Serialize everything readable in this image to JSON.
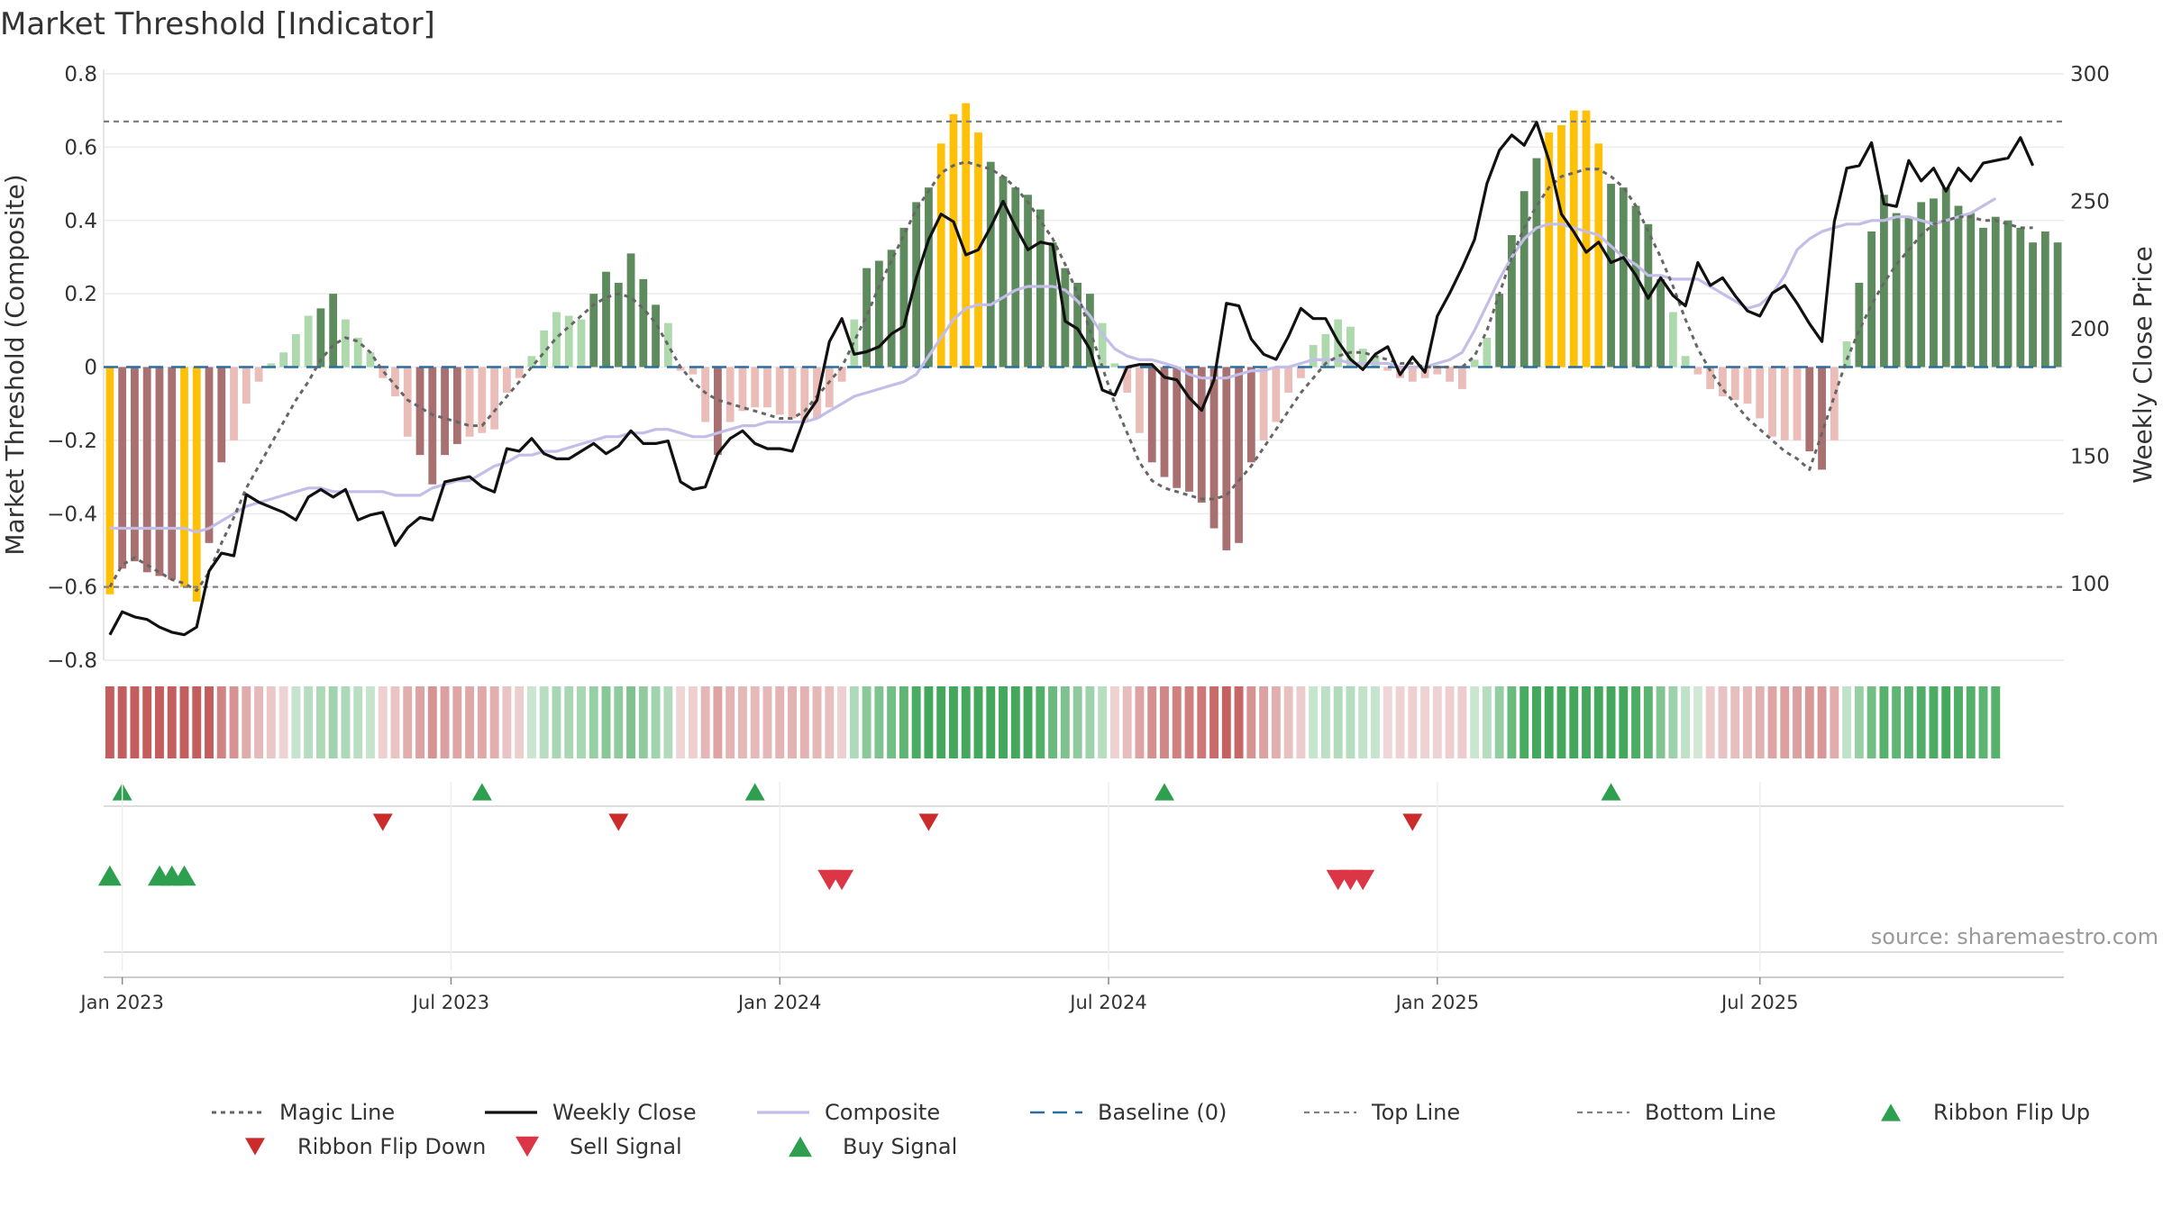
{
  "chart_data": {
    "type": "bar",
    "title": "Market Threshold [Indicator]",
    "ylabel": "Market Threshold (Composite)",
    "ylabel_right": "Weekly Close Price",
    "ylim": [
      -0.8,
      0.8
    ],
    "ylim_right": [
      70,
      300
    ],
    "yticks": [
      "0.8",
      "0.6",
      "0.4",
      "0.2",
      "0",
      "−0.2",
      "−0.4",
      "−0.6",
      "−0.8"
    ],
    "yticks_right": [
      "300",
      "250",
      "200",
      "150",
      "100"
    ],
    "xticks": [
      "Jan 2023",
      "Jul 2023",
      "Jan 2024",
      "Jul 2024",
      "Jan 2025",
      "Jul 2025"
    ],
    "source": "source: sharemaestro.com",
    "top_line": 0.67,
    "bottom_line": -0.6,
    "bar_values": [
      -0.62,
      -0.55,
      -0.53,
      -0.56,
      -0.57,
      -0.58,
      -0.6,
      -0.64,
      -0.48,
      -0.26,
      -0.2,
      -0.1,
      -0.04,
      0.01,
      0.04,
      0.09,
      0.14,
      0.16,
      0.2,
      0.13,
      0.08,
      0.04,
      -0.03,
      -0.08,
      -0.19,
      -0.24,
      -0.32,
      -0.24,
      -0.21,
      -0.19,
      -0.18,
      -0.17,
      -0.07,
      -0.03,
      0.03,
      0.1,
      0.15,
      0.14,
      0.13,
      0.2,
      0.26,
      0.23,
      0.31,
      0.24,
      0.17,
      0.12,
      -0.01,
      -0.02,
      -0.15,
      -0.24,
      -0.15,
      -0.12,
      -0.11,
      -0.11,
      -0.13,
      -0.14,
      -0.15,
      -0.14,
      -0.11,
      -0.04,
      0.13,
      0.27,
      0.29,
      0.32,
      0.38,
      0.45,
      0.49,
      0.61,
      0.69,
      0.72,
      0.64,
      0.56,
      0.52,
      0.49,
      0.47,
      0.43,
      0.34,
      0.27,
      0.23,
      0.2,
      0.12,
      0.01,
      -0.07,
      -0.18,
      -0.26,
      -0.3,
      -0.33,
      -0.34,
      -0.37,
      -0.44,
      -0.5,
      -0.48,
      -0.26,
      -0.2,
      -0.15,
      -0.07,
      -0.03,
      0.06,
      0.09,
      0.13,
      0.11,
      0.05,
      0.03,
      -0.01,
      -0.03,
      -0.04,
      -0.03,
      -0.02,
      -0.04,
      -0.06,
      0.02,
      0.08,
      0.2,
      0.36,
      0.48,
      0.57,
      0.64,
      0.66,
      0.7,
      0.7,
      0.61,
      0.5,
      0.49,
      0.44,
      0.39,
      0.24,
      0.15,
      0.03,
      -0.02,
      -0.06,
      -0.08,
      -0.09,
      -0.1,
      -0.14,
      -0.19,
      -0.2,
      -0.2,
      -0.23,
      -0.28,
      -0.2,
      0.07,
      0.23,
      0.37,
      0.47,
      0.42,
      0.41,
      0.45,
      0.46,
      0.49,
      0.44,
      0.42,
      0.38,
      0.41,
      0.4,
      0.38,
      0.34,
      0.37,
      0.34
    ],
    "series": [
      {
        "name": "Magic Line",
        "values": [
          -0.6,
          -0.54,
          -0.52,
          -0.54,
          -0.56,
          -0.58,
          -0.59,
          -0.61,
          -0.56,
          -0.48,
          -0.41,
          -0.33,
          -0.27,
          -0.21,
          -0.15,
          -0.09,
          -0.04,
          0.02,
          0.06,
          0.08,
          0.07,
          0.04,
          -0.01,
          -0.05,
          -0.09,
          -0.11,
          -0.13,
          -0.14,
          -0.15,
          -0.16,
          -0.16,
          -0.12,
          -0.08,
          -0.04,
          0.0,
          0.04,
          0.08,
          0.11,
          0.14,
          0.17,
          0.19,
          0.2,
          0.19,
          0.16,
          0.12,
          0.06,
          0.0,
          -0.04,
          -0.07,
          -0.09,
          -0.1,
          -0.11,
          -0.12,
          -0.13,
          -0.14,
          -0.14,
          -0.12,
          -0.08,
          -0.04,
          0.0,
          0.07,
          0.14,
          0.22,
          0.29,
          0.36,
          0.43,
          0.48,
          0.53,
          0.55,
          0.56,
          0.55,
          0.54,
          0.52,
          0.49,
          0.45,
          0.4,
          0.35,
          0.28,
          0.2,
          0.1,
          0.0,
          -0.1,
          -0.18,
          -0.26,
          -0.31,
          -0.33,
          -0.34,
          -0.35,
          -0.36,
          -0.36,
          -0.35,
          -0.31,
          -0.27,
          -0.22,
          -0.17,
          -0.12,
          -0.07,
          -0.03,
          0.01,
          0.03,
          0.04,
          0.04,
          0.03,
          0.02,
          0.01,
          0.01,
          0.0,
          0.0,
          0.0,
          0.0,
          0.03,
          0.1,
          0.2,
          0.3,
          0.38,
          0.44,
          0.49,
          0.52,
          0.53,
          0.54,
          0.54,
          0.52,
          0.49,
          0.44,
          0.37,
          0.3,
          0.22,
          0.13,
          0.05,
          -0.01,
          -0.06,
          -0.1,
          -0.14,
          -0.17,
          -0.2,
          -0.23,
          -0.25,
          -0.28,
          -0.18,
          -0.08,
          0.02,
          0.1,
          0.17,
          0.23,
          0.28,
          0.32,
          0.36,
          0.39,
          0.4,
          0.41,
          0.41,
          0.4,
          0.4,
          0.39,
          0.38,
          0.38
        ]
      },
      {
        "name": "Weekly Close",
        "values": [
          80,
          89,
          87,
          86,
          83,
          81,
          80,
          83,
          105,
          112,
          111,
          135,
          132,
          130,
          128,
          125,
          134,
          137,
          134,
          137,
          125,
          127,
          128,
          115,
          122,
          126,
          125,
          140,
          141,
          142,
          138,
          136,
          153,
          152,
          157,
          151,
          149,
          149,
          152,
          155,
          151,
          154,
          160,
          155,
          155,
          156,
          140,
          137,
          138,
          151,
          157,
          160,
          155,
          153,
          153,
          152,
          165,
          172,
          195,
          204,
          190,
          191,
          193,
          198,
          201,
          220,
          235,
          245,
          242,
          229,
          231,
          240,
          250,
          240,
          231,
          234,
          233,
          203,
          200,
          192,
          176,
          174,
          185,
          186,
          186,
          181,
          180,
          173,
          168,
          180,
          210,
          209,
          196,
          190,
          188,
          197,
          208,
          204,
          204,
          195,
          188,
          184,
          190,
          193,
          182,
          189,
          183,
          205,
          214,
          224,
          235,
          257,
          270,
          276,
          272,
          281,
          266,
          245,
          238,
          230,
          234,
          226,
          228,
          221,
          212,
          220,
          213,
          209,
          226,
          217,
          220,
          213,
          207,
          205,
          214,
          217,
          210,
          202,
          195,
          242,
          263,
          264,
          273,
          249,
          248,
          266,
          258,
          263,
          254,
          263,
          258,
          265,
          266,
          267,
          275,
          264
        ]
      },
      {
        "name": "Composite",
        "values": [
          -0.44,
          -0.44,
          -0.44,
          -0.44,
          -0.44,
          -0.44,
          -0.44,
          -0.45,
          -0.44,
          -0.42,
          -0.4,
          -0.38,
          -0.37,
          -0.36,
          -0.35,
          -0.34,
          -0.33,
          -0.33,
          -0.34,
          -0.34,
          -0.34,
          -0.34,
          -0.34,
          -0.35,
          -0.35,
          -0.35,
          -0.33,
          -0.32,
          -0.31,
          -0.31,
          -0.29,
          -0.27,
          -0.26,
          -0.24,
          -0.24,
          -0.23,
          -0.23,
          -0.22,
          -0.21,
          -0.2,
          -0.19,
          -0.19,
          -0.18,
          -0.18,
          -0.17,
          -0.17,
          -0.18,
          -0.19,
          -0.19,
          -0.18,
          -0.17,
          -0.16,
          -0.16,
          -0.15,
          -0.15,
          -0.15,
          -0.15,
          -0.14,
          -0.12,
          -0.1,
          -0.08,
          -0.07,
          -0.06,
          -0.05,
          -0.04,
          -0.02,
          0.03,
          0.08,
          0.13,
          0.16,
          0.17,
          0.17,
          0.19,
          0.21,
          0.22,
          0.22,
          0.22,
          0.21,
          0.18,
          0.14,
          0.09,
          0.05,
          0.03,
          0.02,
          0.02,
          0.01,
          0.0,
          -0.02,
          -0.03,
          -0.03,
          -0.03,
          -0.02,
          -0.01,
          -0.01,
          0.0,
          0.0,
          0.01,
          0.02,
          0.02,
          0.02,
          0.01,
          0.01,
          0.01,
          0.01,
          0.0,
          0.0,
          0.0,
          0.01,
          0.02,
          0.04,
          0.1,
          0.17,
          0.24,
          0.3,
          0.35,
          0.38,
          0.39,
          0.39,
          0.38,
          0.37,
          0.36,
          0.33,
          0.3,
          0.28,
          0.25,
          0.25,
          0.24,
          0.24,
          0.24,
          0.22,
          0.2,
          0.18,
          0.16,
          0.17,
          0.2,
          0.25,
          0.32,
          0.35,
          0.37,
          0.38,
          0.39,
          0.39,
          0.4,
          0.4,
          0.41,
          0.41,
          0.4,
          0.39,
          0.4,
          0.41,
          0.42,
          0.44,
          0.46
        ]
      },
      {
        "name": "Baseline (0)",
        "values": [
          0
        ]
      },
      {
        "name": "Top Line",
        "values": [
          0.67
        ]
      },
      {
        "name": "Bottom Line",
        "values": [
          -0.6
        ]
      }
    ],
    "ribbon_flip_up_idx": [
      1,
      30,
      52,
      85,
      121
    ],
    "ribbon_flip_down_idx": [
      22,
      41,
      66,
      105
    ],
    "buy_signal_idx": [
      0,
      4,
      5,
      6
    ],
    "sell_signal_idx": [
      58,
      59,
      99,
      100,
      101
    ],
    "legend": [
      {
        "label": "Magic Line"
      },
      {
        "label": "Weekly Close"
      },
      {
        "label": "Composite"
      },
      {
        "label": "Baseline (0)"
      },
      {
        "label": "Top Line"
      },
      {
        "label": "Bottom Line"
      },
      {
        "label": "Ribbon Flip Up"
      },
      {
        "label": "Ribbon Flip Down"
      },
      {
        "label": "Sell Signal"
      },
      {
        "label": "Buy Signal"
      }
    ],
    "colors": {
      "bull_strong": "#5e8b5e",
      "bull_weak": "#add9ad",
      "bear_strong": "#a87070",
      "bear_weak": "#ebbdb8",
      "extreme": "#ffc107",
      "magic": "#666666",
      "close": "#111111",
      "composite": "#c3bde8",
      "baseline": "#2a6da0",
      "ribbon_up": "#2e9e4f",
      "sell": "#dc3545",
      "flip_down": "#cc2b2b"
    }
  }
}
